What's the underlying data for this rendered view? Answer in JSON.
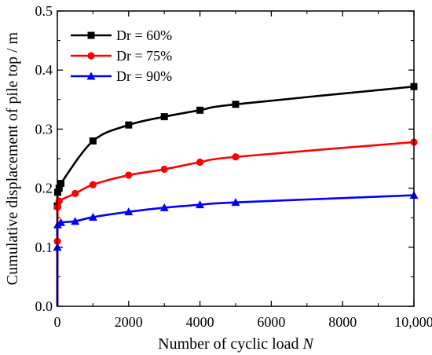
{
  "chart_data": {
    "type": "line",
    "xlabel": "Number of cyclic load ",
    "xlabel_var": "N",
    "ylabel": "Cumulative displacement of pile top / m",
    "xlim": [
      0,
      10000
    ],
    "ylim": [
      0,
      0.5
    ],
    "xticks": [
      0,
      2000,
      4000,
      6000,
      8000,
      10000
    ],
    "xtick_labels": [
      "0",
      "2000",
      "4000",
      "6000",
      "8000",
      "10,000"
    ],
    "yticks": [
      0,
      0.1,
      0.2,
      0.3,
      0.4,
      0.5
    ],
    "ytick_labels": [
      "0.0",
      "0.1",
      "0.2",
      "0.3",
      "0.4",
      "0.5"
    ],
    "grid": false,
    "legend_position": "top-left",
    "series": [
      {
        "name": "Dr = 60%",
        "color": "#000000",
        "marker": "square",
        "x": [
          1,
          10,
          50,
          100,
          1000,
          2000,
          3000,
          4000,
          5000,
          10000
        ],
        "y": [
          0.17,
          0.193,
          0.2,
          0.208,
          0.28,
          0.307,
          0.321,
          0.332,
          0.342,
          0.372
        ]
      },
      {
        "name": "Dr = 75%",
        "color": "#ff0000",
        "marker": "circle",
        "x": [
          1,
          10,
          50,
          500,
          1000,
          2000,
          3000,
          4000,
          5000,
          10000
        ],
        "y": [
          0.11,
          0.168,
          0.178,
          0.191,
          0.206,
          0.222,
          0.232,
          0.244,
          0.253,
          0.278
        ]
      },
      {
        "name": "Dr = 90%",
        "color": "#0000ff",
        "marker": "triangle",
        "x": [
          1,
          10,
          100,
          500,
          1000,
          2000,
          3000,
          4000,
          5000,
          10000
        ],
        "y": [
          0.1,
          0.138,
          0.142,
          0.144,
          0.151,
          0.16,
          0.167,
          0.172,
          0.176,
          0.188
        ]
      }
    ]
  }
}
